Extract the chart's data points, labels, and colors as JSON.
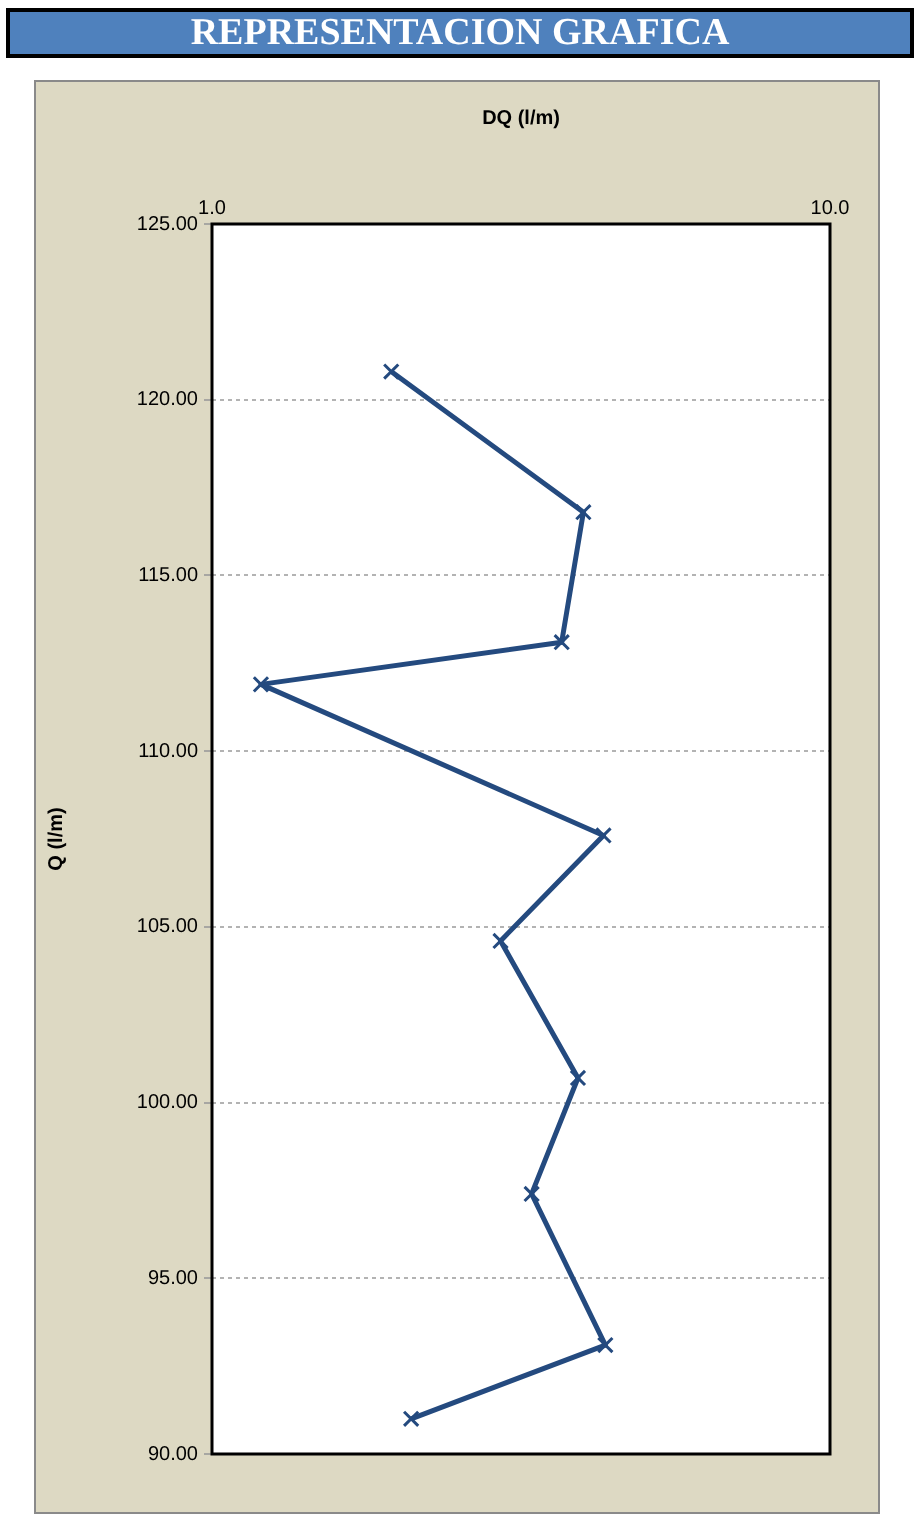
{
  "chart_data": {
    "type": "line",
    "title": "REPRESENTACION GRAFICA",
    "xlabel": "DQ (l/m)",
    "ylabel": "Q (l/m)",
    "log": "x",
    "grid": "y",
    "marker": "cross",
    "x": [
      1.95,
      3.99,
      3.68,
      1.2,
      4.3,
      2.93,
      3.91,
      3.29,
      4.33,
      2.1
    ],
    "series": [
      {
        "color": "#244a7f",
        "values": [
          120.8,
          116.8,
          113.1,
          111.9,
          107.6,
          104.6,
          100.7,
          97.4,
          93.1,
          91.0
        ]
      }
    ],
    "xlim": [
      1,
      10
    ],
    "xticks": [
      {
        "value": 1,
        "label": "1.0"
      },
      {
        "value": 10,
        "label": "10.0"
      }
    ],
    "ylim": [
      90,
      125
    ],
    "yticks": [
      {
        "value": 90,
        "label": "90.00"
      },
      {
        "value": 95,
        "label": "95.00"
      },
      {
        "value": 100,
        "label": "100.00"
      },
      {
        "value": 105,
        "label": "105.00"
      },
      {
        "value": 110,
        "label": "110.00"
      },
      {
        "value": 115,
        "label": "115.00"
      },
      {
        "value": 120,
        "label": "120.00"
      },
      {
        "value": 125,
        "label": "125.00"
      }
    ]
  }
}
